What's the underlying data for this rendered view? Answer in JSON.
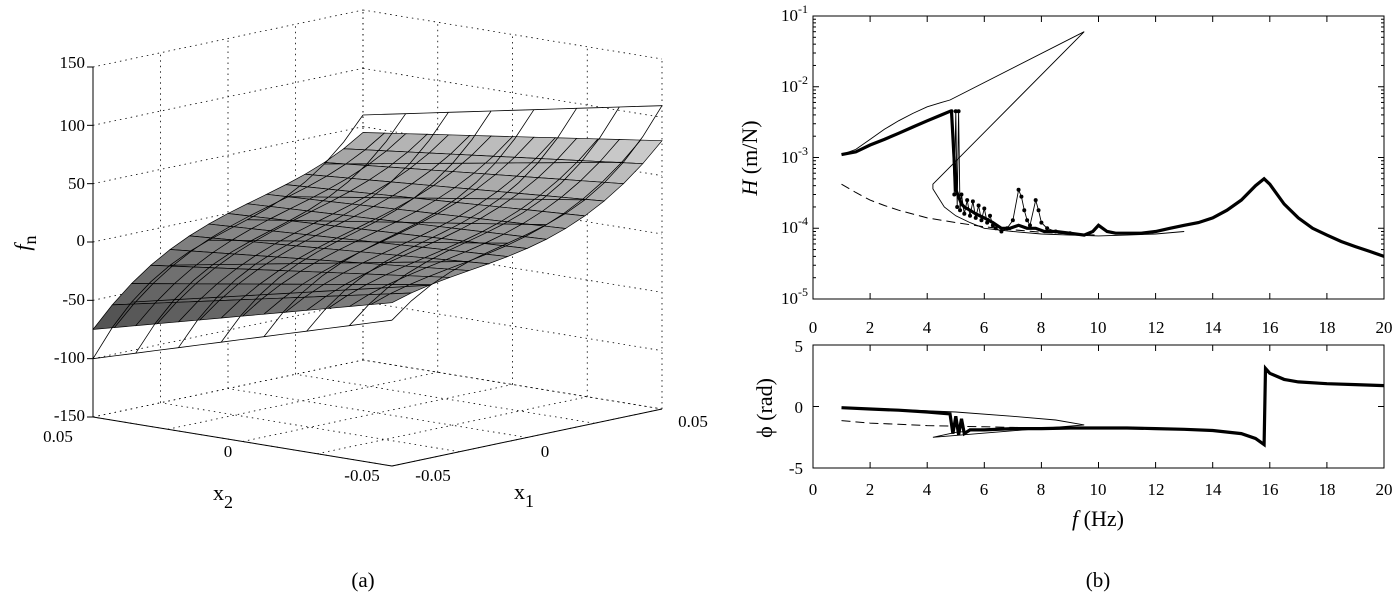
{
  "captions": {
    "a": "(a)",
    "b": "(b)"
  },
  "chart_data": [
    {
      "type": "surface",
      "panel": "a",
      "zlabel_main": "f",
      "zlabel_sub": "n",
      "xlabel_main": "x",
      "xlabel_sub": "1",
      "ylabel_main": "x",
      "ylabel_sub": "2",
      "xlim": [
        -0.05,
        0.05
      ],
      "ylim": [
        -0.05,
        0.05
      ],
      "zlim": [
        -150,
        150
      ],
      "z_ticks": [
        "150",
        "100",
        "50",
        "0",
        "-50",
        "-100",
        "-150"
      ],
      "x1_ticks": [
        "-0.05",
        "0",
        "0.05"
      ],
      "x2_ticks": [
        "0.05",
        "0",
        "-0.05"
      ],
      "grid": true,
      "surface_corners": {
        "x1_min_x2_max": -75,
        "x1_min_x2_min": -10,
        "x1_max_x2_max": 45,
        "x1_max_x2_min": 80
      },
      "wireframe_corners": {
        "x1_min_x2_max": -100,
        "x1_min_x2_min": -25,
        "x1_max_x2_max": 60,
        "x1_max_x2_min": 110
      }
    },
    {
      "type": "line",
      "panel": "b-magnitude",
      "yscale": "log",
      "ylabel_main": "H",
      "ylabel_rest": " (m/N)",
      "xlim": [
        0,
        20
      ],
      "ylim": [
        1e-05,
        0.1
      ],
      "x_ticks": [
        "0",
        "2",
        "4",
        "6",
        "8",
        "10",
        "12",
        "14",
        "16",
        "18",
        "20"
      ],
      "y_tick_exps": [
        "-1",
        "-2",
        "-3",
        "-4",
        "-5"
      ],
      "series": [
        {
          "style": "thick",
          "x": [
            1,
            1.5,
            2,
            2.5,
            3,
            3.5,
            4,
            4.5,
            4.8,
            4.85,
            5,
            5.1,
            5.2,
            5.3,
            5.5,
            5.7,
            6,
            6.3,
            6.6,
            6.9,
            7.2,
            7.5,
            7.8,
            8.1,
            8.5,
            9,
            9.5,
            9.8,
            10,
            10.3,
            10.6,
            11,
            11.5,
            12,
            12.5,
            13,
            13.5,
            14,
            14.5,
            15,
            15.5,
            15.8,
            16,
            16.5,
            17,
            17.5,
            18,
            18.5,
            19,
            19.5,
            20
          ],
          "y": [
            0.0011,
            0.0012,
            0.0015,
            0.0018,
            0.0022,
            0.0027,
            0.0033,
            0.004,
            0.0045,
            0.0045,
            0.00035,
            0.00028,
            0.00022,
            0.0002,
            0.00018,
            0.00016,
            0.00014,
            0.00012,
            0.0001,
            0.0001,
            0.00011,
            0.0001,
            0.0001,
            9e-05,
            9e-05,
            8.5e-05,
            8e-05,
            9e-05,
            0.00011,
            9e-05,
            8.5e-05,
            8.5e-05,
            8.5e-05,
            9e-05,
            0.0001,
            0.00011,
            0.00012,
            0.00014,
            0.00018,
            0.00025,
            0.0004,
            0.0005,
            0.00042,
            0.00022,
            0.00014,
            0.0001,
            8e-05,
            6.5e-05,
            5.5e-05,
            4.7e-05,
            4e-05
          ]
        },
        {
          "style": "thin-markers",
          "x": [
            4.85,
            4.95,
            5.0,
            5.05,
            5.1,
            5.15,
            5.2,
            5.3,
            5.4,
            5.5,
            5.6,
            5.7,
            5.8,
            5.9,
            6.0,
            6.1,
            6.2,
            6.3,
            6.4,
            6.6,
            6.8,
            7.0,
            7.2,
            7.3,
            7.4,
            7.5,
            7.6,
            7.8,
            7.9,
            8.0,
            8.2,
            8.5,
            9.0
          ],
          "y": [
            0.0045,
            0.0003,
            0.0045,
            0.0002,
            0.0045,
            0.00018,
            0.0003,
            0.00016,
            0.00025,
            0.00015,
            0.00024,
            0.00014,
            0.00021,
            0.00013,
            0.00019,
            0.00012,
            0.00015,
            0.00011,
            0.0001,
            9e-05,
            0.0001,
            0.00013,
            0.00035,
            0.00028,
            0.00018,
            0.00013,
            0.00011,
            0.00025,
            0.00018,
            0.00012,
            0.0001,
            9e-05,
            8.5e-05
          ]
        },
        {
          "style": "thin",
          "x": [
            1,
            1.5,
            2,
            2.5,
            3,
            3.5,
            4,
            4.5,
            4.8,
            9.5,
            4.2,
            4.2,
            4.6,
            5,
            5.5,
            6,
            7,
            8,
            9,
            10,
            11,
            12,
            13
          ],
          "y": [
            0.0011,
            0.0013,
            0.0018,
            0.0025,
            0.0033,
            0.0042,
            0.0052,
            0.006,
            0.0065,
            0.06,
            0.00042,
            0.00036,
            0.0002,
            0.00015,
            0.00012,
            0.0001,
            9e-05,
            8.3e-05,
            8e-05,
            7.8e-05,
            8e-05,
            8.3e-05,
            9e-05
          ]
        },
        {
          "style": "dashed",
          "x": [
            1,
            1.5,
            2,
            2.5,
            3,
            4,
            5,
            6,
            7,
            8,
            9,
            10
          ],
          "y": [
            0.00042,
            0.00032,
            0.00025,
            0.00021,
            0.00018,
            0.00014,
            0.00012,
            0.000105,
            9.5e-05,
            8.8e-05,
            8.3e-05,
            8e-05
          ]
        }
      ]
    },
    {
      "type": "line",
      "panel": "b-phase",
      "ylabel": "ϕ (rad)",
      "xlabel_main": "f",
      "xlabel_rest": " (Hz)",
      "xlim": [
        0,
        20
      ],
      "ylim": [
        -5,
        5
      ],
      "x_ticks": [
        "0",
        "2",
        "4",
        "6",
        "8",
        "10",
        "12",
        "14",
        "16",
        "18",
        "20"
      ],
      "y_ticks": [
        "5",
        "0",
        "-5"
      ],
      "series": [
        {
          "style": "thick",
          "x": [
            1,
            2,
            3,
            4,
            4.8,
            4.9,
            5,
            5.1,
            5.2,
            5.3,
            5.5,
            6,
            7,
            8,
            9,
            10,
            11,
            12,
            13,
            14,
            15,
            15.5,
            15.8,
            15.85,
            16,
            16.5,
            17,
            18,
            19,
            20
          ],
          "y": [
            -0.1,
            -0.2,
            -0.3,
            -0.45,
            -0.6,
            -2.2,
            -0.8,
            -2.3,
            -1.0,
            -2.2,
            -1.9,
            -1.9,
            -1.8,
            -1.8,
            -1.75,
            -1.75,
            -1.75,
            -1.8,
            -1.85,
            -1.95,
            -2.2,
            -2.6,
            -3.1,
            3.1,
            2.7,
            2.2,
            2.0,
            1.85,
            1.78,
            1.7
          ]
        },
        {
          "style": "thin",
          "x": [
            1,
            3,
            5,
            7,
            8.5,
            9.5,
            4.2,
            5,
            6,
            8,
            10
          ],
          "y": [
            -0.1,
            -0.25,
            -0.45,
            -0.8,
            -1.1,
            -1.5,
            -2.5,
            -2.1,
            -1.9,
            -1.8,
            -1.75
          ]
        },
        {
          "style": "dashed",
          "x": [
            1,
            2,
            3,
            4,
            5,
            6,
            7,
            8,
            9,
            10
          ],
          "y": [
            -1.15,
            -1.35,
            -1.45,
            -1.55,
            -1.6,
            -1.65,
            -1.7,
            -1.72,
            -1.74,
            -1.75
          ]
        }
      ]
    }
  ]
}
